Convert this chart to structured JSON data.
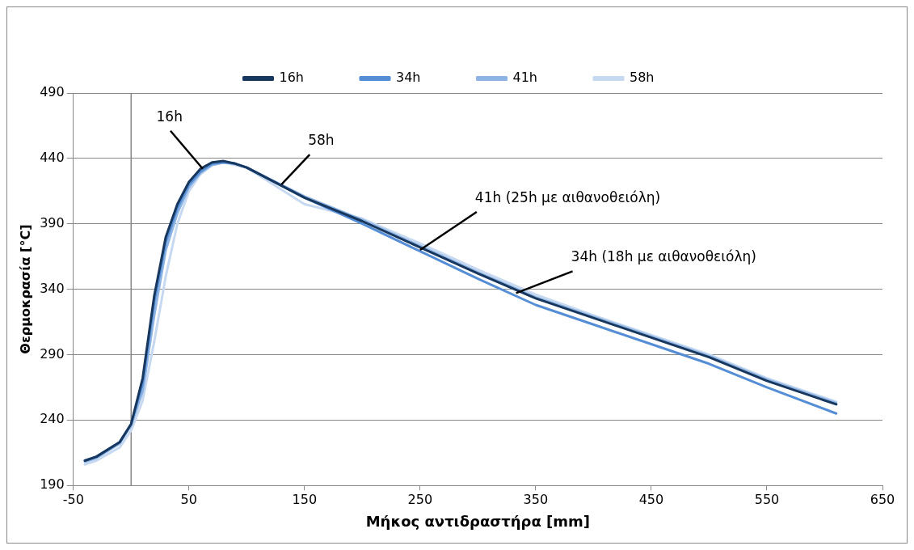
{
  "chart_data": {
    "type": "line",
    "xlabel": "Μήκος αντιδραστήρα [mm]",
    "ylabel": "Θερμοκρασία [°C]",
    "xlim": [
      -50,
      650
    ],
    "xticks": [
      -50,
      50,
      150,
      250,
      350,
      450,
      550,
      650
    ],
    "ylim": [
      190,
      490
    ],
    "yticks": [
      190,
      240,
      290,
      340,
      390,
      440,
      490
    ],
    "grid": "y",
    "legend": "top",
    "marker": "none",
    "line_style": "solid",
    "x": [
      -40,
      -30,
      -10,
      0,
      10,
      20,
      30,
      40,
      50,
      60,
      70,
      80,
      90,
      100,
      150,
      200,
      250,
      300,
      350,
      400,
      450,
      500,
      550,
      610
    ],
    "series": [
      {
        "name": "16h",
        "color": "#17375e",
        "values": [
          209,
          212,
          223,
          237,
          272,
          335,
          380,
          405,
          422,
          432,
          437,
          438,
          436,
          433,
          410,
          392,
          372,
          352,
          333,
          318,
          303,
          288,
          270,
          252
        ]
      },
      {
        "name": "34h",
        "color": "#558ed5",
        "values": [
          209,
          212,
          223,
          237,
          268,
          330,
          376,
          402,
          420,
          430,
          436,
          437,
          436,
          433,
          410,
          390,
          369,
          348,
          328,
          313,
          298,
          283,
          265,
          245
        ]
      },
      {
        "name": "41h",
        "color": "#8eb4e3",
        "values": [
          208,
          211,
          222,
          236,
          262,
          320,
          370,
          398,
          418,
          429,
          435,
          437,
          436,
          433,
          411,
          393,
          373,
          353,
          334,
          319,
          304,
          289,
          271,
          253
        ]
      },
      {
        "name": "58h",
        "color": "#c6d9f1",
        "values": [
          206,
          209,
          219,
          232,
          255,
          300,
          350,
          390,
          415,
          428,
          435,
          437,
          435,
          433,
          405,
          394,
          375,
          355,
          336,
          320,
          305,
          290,
          272,
          254
        ]
      }
    ],
    "annotations": [
      {
        "text": "16h",
        "x": 62,
        "y": 432
      },
      {
        "text": "58h",
        "x": 130,
        "y": 420
      },
      {
        "text": "41h (25h με αιθανοθειόλη)",
        "x": 250,
        "y": 370
      },
      {
        "text": "34h (18h με αιθανοθειόλη)",
        "x": 333,
        "y": 337
      }
    ]
  }
}
